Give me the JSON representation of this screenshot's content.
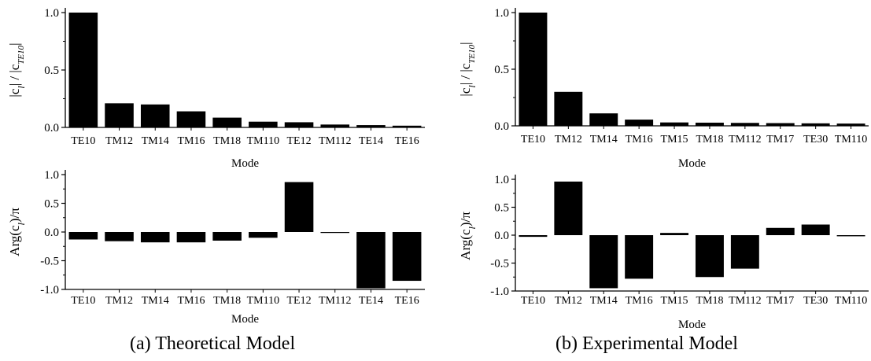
{
  "chart_data": [
    {
      "type": "bar",
      "categories": [
        "TE10",
        "TM12",
        "TM14",
        "TM16",
        "TM18",
        "TM110",
        "TE12",
        "TM112",
        "TE14",
        "TE16"
      ],
      "values": [
        1.0,
        0.21,
        0.2,
        0.14,
        0.085,
        0.05,
        0.045,
        0.025,
        0.02,
        0.015
      ],
      "xlabel": "Mode",
      "ylabel_main": "|c",
      "ylabel_sub": "l",
      "ylabel_mid": "| / |c",
      "ylabel_sub2": "TE10",
      "ylabel_end": "|",
      "yticks": [
        "0.0",
        "0.5",
        "1.0"
      ],
      "ylim": [
        0,
        1.0
      ]
    },
    {
      "type": "bar",
      "categories": [
        "TE10",
        "TM12",
        "TM14",
        "TM16",
        "TM15",
        "TM18",
        "TM112",
        "TM17",
        "TE30",
        "TM110"
      ],
      "values": [
        1.0,
        0.3,
        0.11,
        0.055,
        0.03,
        0.028,
        0.026,
        0.024,
        0.022,
        0.02
      ],
      "xlabel": "Mode",
      "ylabel_main": "|c",
      "ylabel_sub": "l",
      "ylabel_mid": "| / |c",
      "ylabel_sub2": "TE10",
      "ylabel_end": "|",
      "yticks": [
        "0.0",
        "0.5",
        "1.0"
      ],
      "ylim": [
        0,
        1.0
      ]
    },
    {
      "type": "bar",
      "categories": [
        "TE10",
        "TM12",
        "TM14",
        "TM16",
        "TM18",
        "TM110",
        "TE12",
        "TM112",
        "TE14",
        "TE16"
      ],
      "values": [
        -0.13,
        -0.16,
        -0.18,
        -0.18,
        -0.15,
        -0.1,
        0.87,
        -0.01,
        -0.98,
        -0.85
      ],
      "xlabel": "Mode",
      "ylabel_main": "Arg(c",
      "ylabel_sub": "l",
      "ylabel_end": ")/π",
      "yticks": [
        "1.0",
        "0.5",
        "0.0",
        "-0.5",
        "-1.0"
      ],
      "ylim": [
        -1.0,
        1.0
      ]
    },
    {
      "type": "bar",
      "categories": [
        "TE10",
        "TM12",
        "TM14",
        "TM16",
        "TM15",
        "TM18",
        "TM112",
        "TM17",
        "TE30",
        "TM110"
      ],
      "values": [
        -0.03,
        0.96,
        -0.95,
        -0.78,
        0.04,
        -0.75,
        -0.6,
        0.13,
        0.19,
        -0.02
      ],
      "xlabel": "Mode",
      "ylabel_main": "Arg(c",
      "ylabel_sub": "l",
      "ylabel_end": ")/π",
      "yticks": [
        "1.0",
        "0.5",
        "0.0",
        "-0.5",
        "-1.0"
      ],
      "ylim": [
        -1.0,
        1.0
      ]
    }
  ],
  "captions": {
    "a": "(a)  Theoretical Model",
    "b": "(b) Experimental Model"
  },
  "colors": {
    "bar": "#000000",
    "axis": "#000000"
  }
}
